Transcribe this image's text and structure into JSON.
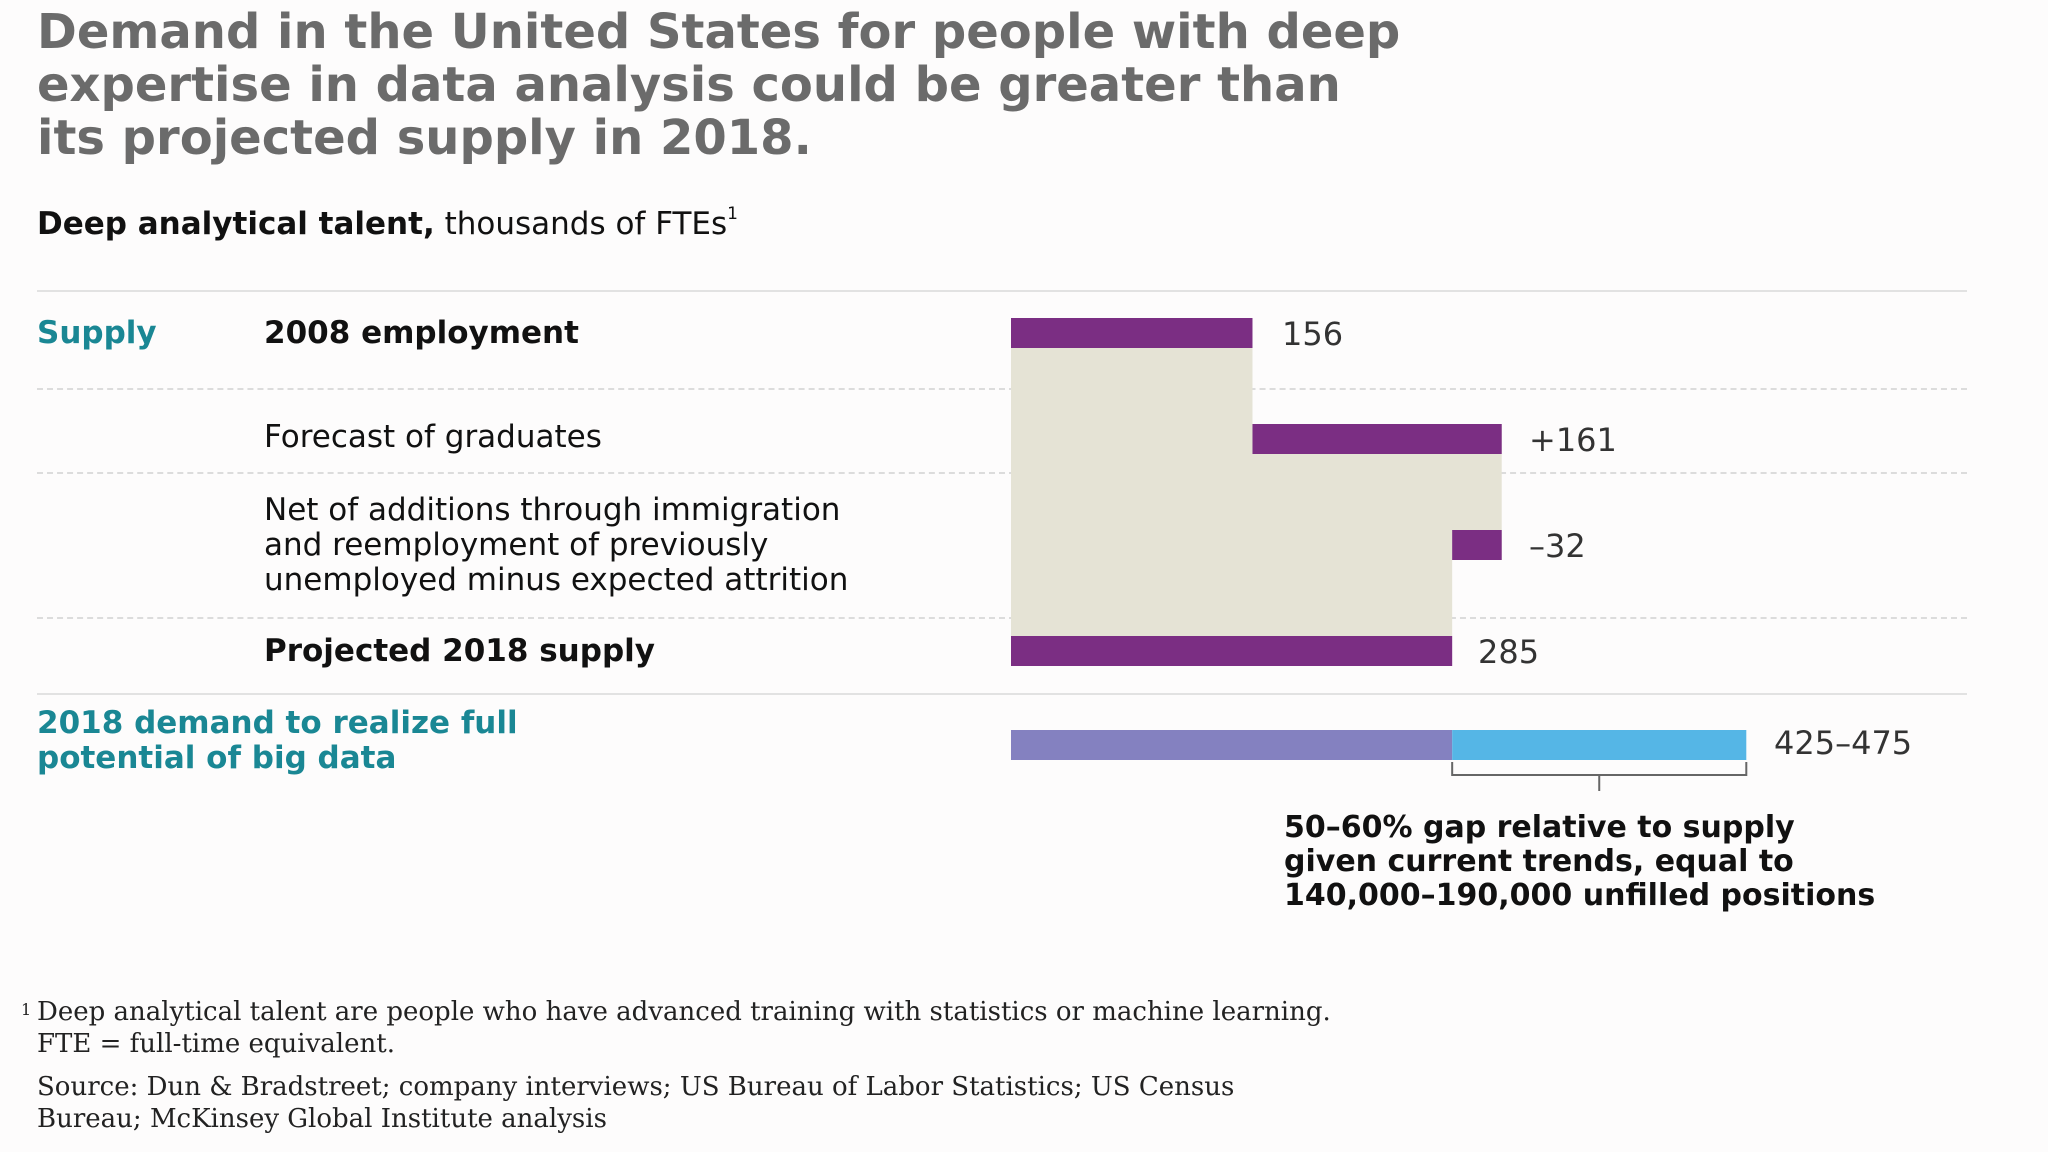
{
  "title_lines": [
    "Demand in the United States for people with deep",
    "expertise in data analysis could be greater than",
    "its projected supply in 2018."
  ],
  "subtitle": {
    "bold": "Deep analytical talent,",
    "rest": " thousands of FTEs",
    "footnote_mark": "1"
  },
  "rows": {
    "supply_label": "Supply",
    "employment_2008": {
      "label": "2008 employment",
      "value_label": "156"
    },
    "graduates": {
      "label": "Forecast of graduates",
      "value_label": "+161"
    },
    "net_additions": {
      "label_lines": [
        "Net of additions through immigration",
        "and reemployment of previously",
        "unemployed minus expected attrition"
      ],
      "value_label": "–32"
    },
    "projected_supply": {
      "label": "Projected 2018 supply",
      "value_label": "285"
    },
    "demand": {
      "label_lines": [
        "2018 demand to realize full",
        "potential of big data"
      ],
      "value_label": "425–475"
    }
  },
  "gap_note_lines": [
    "50–60% gap relative to supply",
    "given current trends, equal to",
    "140,000–190,000 unfilled positions"
  ],
  "footnote": {
    "mark": "1",
    "lines": [
      "Deep analytical talent are people who have advanced training with statistics or machine learning.",
      "FTE = full-time equivalent."
    ]
  },
  "source_lines": [
    "Source: Dun & Bradstreet; company interviews; US Bureau of Labor Statistics; US Census",
    "Bureau; McKinsey Global Institute analysis"
  ],
  "colors": {
    "bar": "#7b2e83",
    "shade": "#e5e3d5",
    "demand_low": "#8481c0",
    "demand_gap": "#55b6e6",
    "teal": "#1a8794",
    "bracket": "#666666"
  },
  "chart_data": {
    "type": "bar",
    "subtype": "waterfall",
    "unit": "thousands of FTEs",
    "categories": [
      "2008 employment",
      "Forecast of graduates",
      "Net of additions through immigration and reemployment of previously unemployed minus expected attrition",
      "Projected 2018 supply",
      "2018 demand to realize full potential of big data"
    ],
    "steps": [
      {
        "category": "2008 employment",
        "start": 0,
        "end": 156,
        "value": 156
      },
      {
        "category": "Forecast of graduates",
        "start": 156,
        "end": 317,
        "value": 161
      },
      {
        "category": "Net additions minus attrition",
        "start": 317,
        "end": 285,
        "value": -32
      },
      {
        "category": "Projected 2018 supply",
        "start": 0,
        "end": 285,
        "value": 285
      },
      {
        "category": "2018 demand",
        "start": 0,
        "end": 285,
        "value": 285,
        "segment": "supply"
      },
      {
        "category": "2018 demand",
        "start": 285,
        "end": 475,
        "value_range": [
          425,
          475
        ],
        "segment": "gap"
      }
    ],
    "xlim": [
      0,
      480
    ]
  }
}
